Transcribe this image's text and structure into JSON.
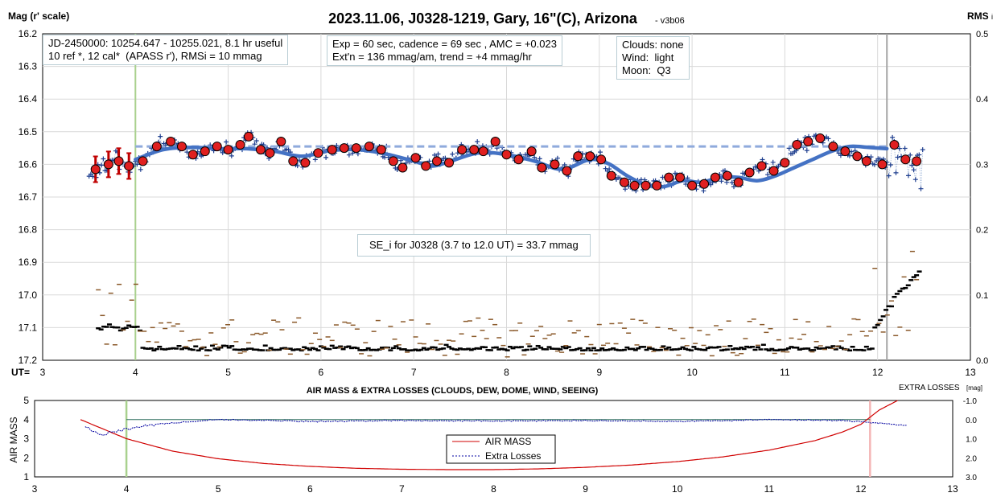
{
  "chart_data": [
    {
      "type": "scatter",
      "title": "2023.11.06, J0328-1219, Gary, 16\"(C), Arizona",
      "version": "- v3b06",
      "ylabel": "Mag (r' scale)",
      "y2label": "RMS",
      "y2label_suffix": "i",
      "xlabel": "UT=",
      "xlim": [
        3,
        13
      ],
      "ylim": [
        16.2,
        17.2
      ],
      "y_inverted": true,
      "y2lim": [
        0.0,
        0.5
      ],
      "xticks": [
        "3",
        "4",
        "5",
        "6",
        "7",
        "8",
        "9",
        "10",
        "11",
        "12",
        "13"
      ],
      "yticks": [
        "16.2",
        "16.3",
        "16.4",
        "16.5",
        "16.6",
        "16.7",
        "16.8",
        "16.9",
        "17.0",
        "17.1",
        "17.2"
      ],
      "y2ticks": [
        "0.5",
        "0.4",
        "0.3",
        "0.2",
        "0.1",
        "0.0"
      ],
      "grid": true,
      "vlines": [
        {
          "x": 4.0,
          "color": "#a9d18e"
        },
        {
          "x": 12.1,
          "color": "#a6a6a6"
        }
      ],
      "colors": {
        "raw": "#1f3f8f",
        "binned": "#e02020",
        "fit": "#4472c4",
        "ref_line": "#8faadc",
        "rms": "#000000",
        "rms_other": "#8b5a2b",
        "early": "#c00000"
      },
      "annotations": [
        "JD-2450000: 10254.647 - 10255.021, 8.1 hr useful\n10 ref *, 12 cal*  (APASS r'), RMSi = 10 mmag",
        "Exp = 60 sec, cadence = 69 sec , AMC = +0.023\nExt'n = 136 mmag/am, trend = +4 mmag/hr",
        "Clouds: none\nWind:  light\nMoon:  Q3",
        "SE_i for J0328 (3.7 to 12.0 UT) = 33.7 mmag"
      ],
      "reference_level": {
        "x": [
          4.0,
          12.1
        ],
        "y": 16.545
      },
      "series": [
        {
          "kind": "binned",
          "x": [
            3.57,
            3.71,
            3.82,
            3.93,
            4.08,
            4.23,
            4.38,
            4.5,
            4.62,
            4.75,
            4.88,
            5.0,
            5.13,
            5.22,
            5.35,
            5.45,
            5.57,
            5.7,
            5.83,
            5.97,
            6.12,
            6.25,
            6.38,
            6.52,
            6.65,
            6.78,
            6.88,
            7.02,
            7.13,
            7.25,
            7.38,
            7.52,
            7.65,
            7.75,
            7.88,
            8.0,
            8.13,
            8.27,
            8.38,
            8.52,
            8.65,
            8.77,
            8.9,
            9.02,
            9.13,
            9.27,
            9.38,
            9.5,
            9.62,
            9.75,
            9.87,
            10.0,
            10.13,
            10.25,
            10.38,
            10.5,
            10.62,
            10.75,
            10.88,
            11.0,
            11.13,
            11.25,
            11.38,
            11.52,
            11.65,
            11.78,
            11.88,
            12.05,
            12.18,
            12.3,
            12.42
          ],
          "y": [
            16.615,
            16.6,
            16.59,
            16.605,
            16.59,
            16.545,
            16.53,
            16.545,
            16.57,
            16.56,
            16.545,
            16.555,
            16.54,
            16.515,
            16.555,
            16.565,
            16.53,
            16.59,
            16.595,
            16.565,
            16.555,
            16.55,
            16.55,
            16.545,
            16.555,
            16.59,
            16.61,
            16.58,
            16.605,
            16.59,
            16.595,
            16.555,
            16.555,
            16.56,
            16.53,
            16.57,
            16.585,
            16.56,
            16.61,
            16.6,
            16.62,
            16.575,
            16.575,
            16.585,
            16.635,
            16.655,
            16.665,
            16.665,
            16.665,
            16.64,
            16.64,
            16.665,
            16.66,
            16.64,
            16.635,
            16.655,
            16.625,
            16.605,
            16.62,
            16.595,
            16.54,
            16.53,
            16.52,
            16.545,
            16.56,
            16.575,
            16.59,
            16.6,
            16.54,
            16.585,
            16.59
          ]
        },
        {
          "kind": "fit",
          "x": [
            4.0,
            4.3,
            4.6,
            4.9,
            5.2,
            5.5,
            5.8,
            6.1,
            6.4,
            6.7,
            7.0,
            7.2,
            7.4,
            7.7,
            8.0,
            8.3,
            8.6,
            8.9,
            9.1,
            9.3,
            9.5,
            9.7,
            9.9,
            10.1,
            10.3,
            10.5,
            10.7,
            10.9,
            11.1,
            11.3,
            11.5,
            11.7,
            11.9,
            12.1
          ],
          "y": [
            16.585,
            16.555,
            16.548,
            16.552,
            16.552,
            16.56,
            16.575,
            16.558,
            16.555,
            16.568,
            16.59,
            16.605,
            16.59,
            16.565,
            16.57,
            16.59,
            16.615,
            16.585,
            16.598,
            16.635,
            16.662,
            16.668,
            16.65,
            16.655,
            16.64,
            16.64,
            16.65,
            16.635,
            16.61,
            16.585,
            16.56,
            16.545,
            16.548,
            16.552
          ]
        }
      ]
    },
    {
      "type": "line",
      "title": "AIR MASS & EXTRA LOSSES (CLOUDS, DEW, DOME, WIND, SEEING)",
      "ylabel": "AIR MASS",
      "y2label": "EXTRA LOSSES",
      "y2label_suffix": "[mag]",
      "xlim": [
        3,
        13
      ],
      "ylim": [
        1,
        5
      ],
      "y2lim": [
        -1.0,
        3.0
      ],
      "xticks": [
        "3",
        "4",
        "5",
        "6",
        "7",
        "8",
        "9",
        "10",
        "11",
        "12",
        "13"
      ],
      "yticks": [
        "5",
        "4",
        "3",
        "2",
        "1"
      ],
      "y2ticks": [
        "-1.0",
        "0.0",
        "1.0",
        "2.0",
        "3.0"
      ],
      "vlines": [
        {
          "x": 4.0,
          "color": "#a9d18e"
        },
        {
          "x": 12.1,
          "color": "#f4b6b6"
        }
      ],
      "colors": {
        "airmass": "#d00000",
        "extra": "#0000a0",
        "zero": "#2e6e5e"
      },
      "legend_position": "bottom-center",
      "series": [
        {
          "name": "AIR MASS",
          "x": [
            3.5,
            4.0,
            4.5,
            5.0,
            5.5,
            6.0,
            6.5,
            7.0,
            7.5,
            8.0,
            8.5,
            9.0,
            9.5,
            10.0,
            10.5,
            11.0,
            11.5,
            11.8,
            12.0,
            12.2,
            12.4
          ],
          "y": [
            4.0,
            3.0,
            2.35,
            1.95,
            1.7,
            1.55,
            1.45,
            1.4,
            1.38,
            1.38,
            1.42,
            1.5,
            1.62,
            1.8,
            2.05,
            2.4,
            2.9,
            3.35,
            3.75,
            4.5,
            5.0
          ]
        },
        {
          "name": "Extra Losses",
          "x": [
            3.5,
            3.7,
            4.0,
            4.3,
            5.0,
            6.0,
            7.0,
            8.0,
            9.0,
            10.0,
            11.0,
            11.8,
            12.1,
            12.5
          ],
          "y": [
            0.2,
            0.8,
            0.5,
            0.25,
            0.0,
            0.1,
            0.05,
            0.08,
            0.05,
            0.1,
            0.0,
            0.05,
            0.15,
            0.3
          ]
        }
      ]
    }
  ]
}
